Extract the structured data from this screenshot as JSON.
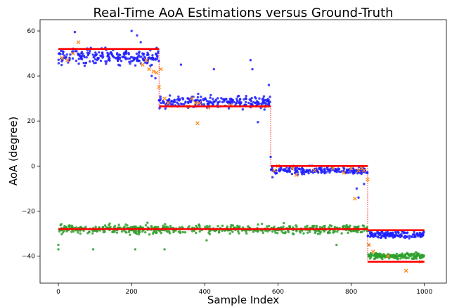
{
  "chart_data": {
    "type": "scatter",
    "title": "Real-Time AoA Estimations versus Ground-Truth",
    "xlabel": "Sample Index",
    "ylabel": "AoA (degree)",
    "xlim": [
      -50,
      1060
    ],
    "ylim": [
      -52,
      65
    ],
    "xticks": [
      "0",
      "200",
      "400",
      "600",
      "800",
      "1000"
    ],
    "yticks": [
      "−40",
      "−20",
      "0",
      "20",
      "40",
      "60"
    ],
    "xtick_values": [
      0,
      200,
      400,
      600,
      800,
      1000
    ],
    "ytick_values": [
      -40,
      -20,
      0,
      20,
      40,
      60
    ],
    "grid": false,
    "legend": "none",
    "colors": {
      "blue": "#1f1fff",
      "green": "#2ca02c",
      "orange": "#ff8c1a",
      "red": "#ff0000"
    },
    "series": [
      {
        "kind": "ground-truth-step",
        "color": "red",
        "segments": [
          {
            "x": [
              0,
              275
            ],
            "y": 52
          },
          {
            "x": 275,
            "y": [
              52,
              26.5
            ],
            "dotted": true
          },
          {
            "x": [
              275,
              580
            ],
            "y": 26.5
          },
          {
            "x": 580,
            "y": [
              26.5,
              0
            ],
            "dotted": true
          },
          {
            "x": [
              580,
              845
            ],
            "y": 0
          },
          {
            "x": 845,
            "y": [
              0,
              -28.5
            ],
            "dotted": true
          },
          {
            "x": [
              845,
              1000
            ],
            "y": -28.5
          }
        ]
      },
      {
        "kind": "ground-truth-step",
        "color": "red",
        "segments": [
          {
            "x": [
              0,
              845
            ],
            "y": -28
          },
          {
            "x": 845,
            "y": [
              -28,
              -42.5
            ],
            "dotted": true
          },
          {
            "x": [
              845,
              1000
            ],
            "y": -42.5
          }
        ]
      },
      {
        "kind": "estimate-cluster",
        "color": "blue",
        "marker": "dot",
        "clusters": [
          {
            "x": [
              0,
              275
            ],
            "center": 48.5,
            "spread": 4.5,
            "count": 220
          },
          {
            "x": [
              275,
              580
            ],
            "center": 28.5,
            "spread": 3.5,
            "count": 240
          },
          {
            "x": [
              580,
              845
            ],
            "center": -2,
            "spread": 2.2,
            "count": 210
          },
          {
            "x": [
              845,
              1000
            ],
            "center": -30.5,
            "spread": 1.8,
            "count": 140
          }
        ],
        "outliers": [
          [
            45,
            59.5
          ],
          [
            200,
            60
          ],
          [
            215,
            58
          ],
          [
            225,
            55
          ],
          [
            230,
            50
          ],
          [
            255,
            40
          ],
          [
            265,
            39
          ],
          [
            335,
            45
          ],
          [
            425,
            43
          ],
          [
            525,
            47
          ],
          [
            530,
            43
          ],
          [
            545,
            19.5
          ],
          [
            575,
            36
          ],
          [
            580,
            4
          ],
          [
            585,
            -5
          ],
          [
            815,
            -10
          ],
          [
            820,
            -14
          ],
          [
            835,
            -8
          ],
          [
            848,
            -35
          ]
        ]
      },
      {
        "kind": "estimate-cluster",
        "color": "green",
        "marker": "dot",
        "clusters": [
          {
            "x": [
              0,
              845
            ],
            "center": -28,
            "spread": 2.5,
            "count": 560
          },
          {
            "x": [
              845,
              1000
            ],
            "center": -40,
            "spread": 1.8,
            "count": 170
          }
        ],
        "outliers": [
          [
            0,
            -35
          ],
          [
            0,
            -37
          ],
          [
            95,
            -37
          ],
          [
            210,
            -37
          ],
          [
            290,
            -37
          ],
          [
            405,
            -33
          ],
          [
            760,
            -35
          ]
        ]
      },
      {
        "kind": "estimate-marker",
        "color": "orange",
        "marker": "x",
        "points": [
          [
            10,
            48
          ],
          [
            25,
            47
          ],
          [
            40,
            50
          ],
          [
            55,
            55
          ],
          [
            230,
            45
          ],
          [
            240,
            47
          ],
          [
            248,
            43
          ],
          [
            260,
            42
          ],
          [
            268,
            41.5
          ],
          [
            275,
            35
          ],
          [
            280,
            43
          ],
          [
            290,
            30
          ],
          [
            300,
            28
          ],
          [
            355,
            26.5
          ],
          [
            365,
            30
          ],
          [
            375,
            28
          ],
          [
            380,
            19
          ],
          [
            385,
            28
          ],
          [
            410,
            26
          ],
          [
            470,
            27
          ],
          [
            560,
            26.5
          ],
          [
            590,
            -2
          ],
          [
            600,
            0
          ],
          [
            640,
            -1
          ],
          [
            650,
            -4
          ],
          [
            700,
            -2
          ],
          [
            750,
            -1
          ],
          [
            780,
            -3
          ],
          [
            800,
            -1
          ],
          [
            810,
            -14.5
          ],
          [
            820,
            -2
          ],
          [
            830,
            -1
          ],
          [
            835,
            -2
          ],
          [
            845,
            -6
          ],
          [
            848,
            -35
          ],
          [
            860,
            -38
          ],
          [
            900,
            -40
          ],
          [
            950,
            -46.5
          ],
          [
            990,
            -42.5
          ]
        ]
      }
    ]
  }
}
